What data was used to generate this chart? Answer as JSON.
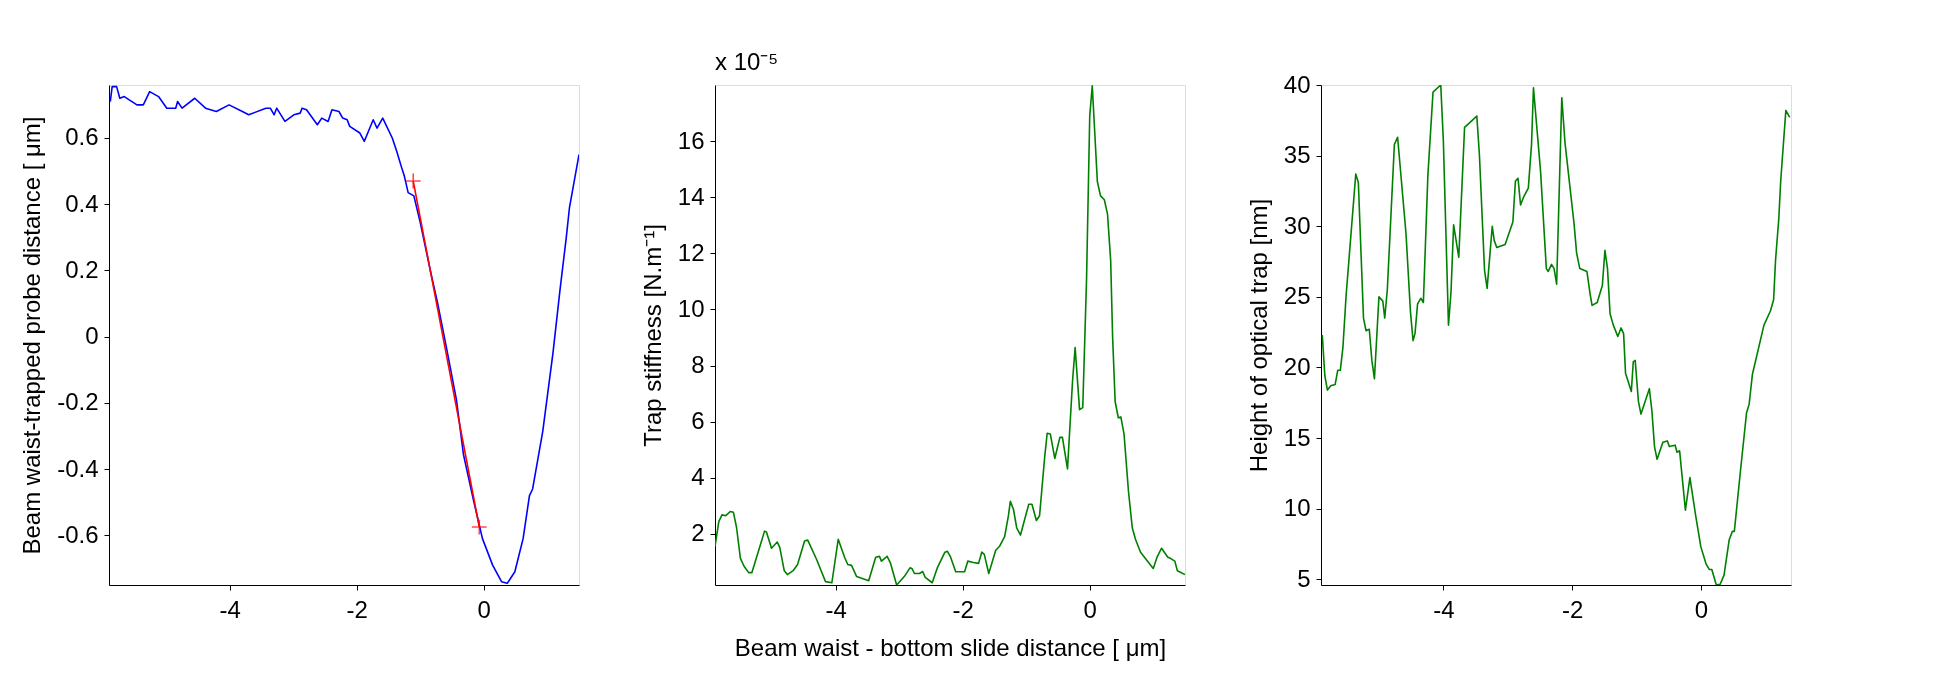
{
  "chart_data": [
    {
      "type": "line",
      "ylabel": "Beam waist-trapped probe distance [ μm]",
      "xlim": [
        -5.9,
        1.5
      ],
      "xticks": [
        -4,
        -2,
        0
      ],
      "ylim": [
        -0.75,
        0.76
      ],
      "yticks": [
        -0.6,
        -0.4,
        -0.2,
        0,
        0.2,
        0.4,
        0.6
      ],
      "grid": false,
      "line_style": "solid",
      "series": [
        {
          "color": "#0000ff",
          "marker": "none",
          "x": [
            -5.88,
            -5.85,
            -5.78,
            -5.73,
            -5.66,
            -5.46,
            -5.36,
            -5.26,
            -5.12,
            -4.99,
            -4.85,
            -4.82,
            -4.75,
            -4.55,
            -4.38,
            -4.21,
            -4.01,
            -3.8,
            -3.7,
            -3.43,
            -3.36,
            -3.3,
            -3.26,
            -3.13,
            -2.99,
            -2.89,
            -2.86,
            -2.79,
            -2.62,
            -2.55,
            -2.45,
            -2.39,
            -2.28,
            -2.22,
            -2.15,
            -2.11,
            -1.95,
            -1.88,
            -1.74,
            -1.68,
            -1.59,
            -1.44,
            -1.37,
            -1.3,
            -1.25,
            -1.19,
            -1.1,
            -1.0,
            -0.83,
            -0.73,
            -0.59,
            -0.43,
            -0.32,
            -0.16,
            -0.02,
            0.14,
            0.28,
            0.37,
            0.49,
            0.62,
            0.72,
            0.77,
            0.93,
            1.09,
            1.2,
            1.3,
            1.35,
            1.5
          ],
          "values": [
            0.71,
            0.755,
            0.755,
            0.72,
            0.725,
            0.7,
            0.7,
            0.74,
            0.725,
            0.69,
            0.69,
            0.71,
            0.69,
            0.72,
            0.69,
            0.68,
            0.7,
            0.68,
            0.67,
            0.69,
            0.69,
            0.67,
            0.69,
            0.65,
            0.67,
            0.675,
            0.69,
            0.685,
            0.64,
            0.66,
            0.65,
            0.685,
            0.68,
            0.66,
            0.655,
            0.635,
            0.615,
            0.59,
            0.655,
            0.63,
            0.66,
            0.6,
            0.56,
            0.515,
            0.485,
            0.435,
            0.425,
            0.345,
            0.19,
            0.105,
            -0.03,
            -0.19,
            -0.355,
            -0.495,
            -0.61,
            -0.69,
            -0.74,
            -0.745,
            -0.71,
            -0.61,
            -0.48,
            -0.46,
            -0.285,
            -0.05,
            0.14,
            0.3,
            0.39,
            0.55
          ]
        },
        {
          "color": "#ff0000",
          "marker": "cross",
          "x": [
            -1.11,
            -0.07
          ],
          "values": [
            0.47,
            -0.575
          ]
        }
      ]
    },
    {
      "type": "line",
      "xlabel": "Beam waist - bottom slide distance [ μm]",
      "ylabel": "Trap stiffness [N.m⁻¹]",
      "annotations": [
        "x 10⁻⁵"
      ],
      "xlim": [
        -5.9,
        1.5
      ],
      "xticks": [
        -4,
        -2,
        0
      ],
      "ylim": [
        0.18,
        18
      ],
      "yticks": [
        2,
        4,
        6,
        8,
        10,
        12,
        14,
        16
      ],
      "grid": false,
      "line_style": "solid",
      "series": [
        {
          "color": "#008000",
          "marker": "none",
          "x": [
            -5.9,
            -5.84,
            -5.79,
            -5.73,
            -5.66,
            -5.61,
            -5.56,
            -5.5,
            -5.44,
            -5.37,
            -5.32,
            -5.12,
            -5.09,
            -5.01,
            -4.92,
            -4.88,
            -4.81,
            -4.76,
            -4.67,
            -4.6,
            -4.49,
            -4.44,
            -4.3,
            -4.16,
            -4.06,
            -3.96,
            -3.86,
            -3.81,
            -3.75,
            -3.67,
            -3.48,
            -3.37,
            -3.31,
            -3.28,
            -3.19,
            -3.14,
            -3.04,
            -2.92,
            -2.83,
            -2.8,
            -2.76,
            -2.68,
            -2.63,
            -2.59,
            -2.48,
            -2.4,
            -2.28,
            -2.24,
            -2.19,
            -2.11,
            -1.97,
            -1.92,
            -1.83,
            -1.75,
            -1.7,
            -1.66,
            -1.59,
            -1.48,
            -1.42,
            -1.34,
            -1.28,
            -1.25,
            -1.2,
            -1.15,
            -1.09,
            -0.96,
            -0.91,
            -0.84,
            -0.79,
            -0.71,
            -0.67,
            -0.62,
            -0.55,
            -0.47,
            -0.43,
            -0.35,
            -0.27,
            -0.23,
            -0.16,
            -0.11,
            -0.05,
            0.0,
            0.04,
            0.12,
            0.17,
            0.23,
            0.28,
            0.33,
            0.36,
            0.4,
            0.45,
            0.49,
            0.54,
            0.61,
            0.67,
            0.72,
            0.8,
            1.0,
            1.06,
            1.13,
            1.23,
            1.27,
            1.34,
            1.38,
            1.5
          ],
          "values": [
            1.56,
            2.44,
            2.68,
            2.65,
            2.8,
            2.77,
            2.22,
            1.13,
            0.84,
            0.62,
            0.62,
            2.1,
            2.07,
            1.49,
            1.71,
            1.52,
            0.69,
            0.55,
            0.69,
            0.91,
            1.75,
            1.78,
            1.09,
            0.3,
            0.26,
            1.81,
            1.17,
            0.91,
            0.88,
            0.48,
            0.33,
            1.17,
            1.2,
            1.03,
            1.2,
            0.98,
            0.18,
            0.48,
            0.79,
            0.77,
            0.59,
            0.59,
            0.66,
            0.45,
            0.26,
            0.79,
            1.35,
            1.38,
            1.17,
            0.65,
            0.65,
            1.03,
            0.98,
            0.95,
            1.35,
            1.27,
            0.59,
            1.42,
            1.56,
            1.9,
            2.65,
            3.16,
            2.87,
            2.22,
            1.96,
            3.06,
            3.06,
            2.48,
            2.65,
            4.72,
            5.59,
            5.56,
            4.69,
            5.44,
            5.44,
            4.32,
            7.47,
            8.64,
            6.43,
            6.5,
            11.08,
            16.89,
            17.97,
            14.56,
            14.05,
            13.91,
            13.4,
            11.73,
            9.04,
            6.72,
            6.14,
            6.17,
            5.56,
            3.52,
            2.22,
            1.81,
            1.35,
            0.77,
            1.17,
            1.49,
            1.17,
            1.13,
            1.03,
            0.69,
            0.55
          ]
        }
      ]
    },
    {
      "type": "line",
      "ylabel": "Height of optical trap [nm]",
      "xlim": [
        -5.9,
        1.4
      ],
      "xticks": [
        -4,
        -2,
        0
      ],
      "ylim": [
        4.6,
        40
      ],
      "yticks": [
        5,
        10,
        15,
        20,
        25,
        30,
        35,
        40
      ],
      "grid": false,
      "line_style": "solid",
      "series": [
        {
          "color": "#008000",
          "marker": "none",
          "x": [
            -5.88,
            -5.84,
            -5.8,
            -5.75,
            -5.68,
            -5.64,
            -5.6,
            -5.56,
            -5.51,
            -5.36,
            -5.32,
            -5.24,
            -5.2,
            -5.15,
            -5.11,
            -5.07,
            -5.0,
            -4.94,
            -4.91,
            -4.87,
            -4.76,
            -4.71,
            -4.58,
            -4.51,
            -4.47,
            -4.44,
            -4.4,
            -4.35,
            -4.31,
            -4.24,
            -4.16,
            -4.04,
            -4.0,
            -3.92,
            -3.88,
            -3.84,
            -3.76,
            -3.67,
            -3.48,
            -3.44,
            -3.36,
            -3.32,
            -3.24,
            -3.21,
            -3.17,
            -3.04,
            -2.92,
            -2.88,
            -2.84,
            -2.8,
            -2.75,
            -2.68,
            -2.63,
            -2.6,
            -2.49,
            -2.4,
            -2.37,
            -2.32,
            -2.28,
            -2.24,
            -2.16,
            -2.11,
            -1.97,
            -1.93,
            -1.88,
            -1.77,
            -1.72,
            -1.69,
            -1.61,
            -1.53,
            -1.49,
            -1.45,
            -1.41,
            -1.36,
            -1.29,
            -1.24,
            -1.2,
            -1.17,
            -1.08,
            -1.05,
            -1.02,
            -0.97,
            -0.93,
            -0.8,
            -0.76,
            -0.72,
            -0.68,
            -0.59,
            -0.52,
            -0.49,
            -0.4,
            -0.37,
            -0.33,
            -0.24,
            -0.17,
            -0.08,
            0.0,
            0.08,
            0.13,
            0.17,
            0.24,
            0.3,
            0.36,
            0.44,
            0.49,
            0.52,
            0.62,
            0.71,
            0.75,
            0.8,
            0.98,
            1.08,
            1.13,
            1.16,
            1.21,
            1.24,
            1.32,
            1.38
          ],
          "values": [
            22.3,
            19.4,
            18.4,
            18.7,
            18.8,
            19.8,
            19.8,
            21.4,
            25.1,
            33.7,
            33.1,
            23.5,
            22.6,
            22.7,
            20.5,
            19.2,
            25.0,
            24.7,
            23.5,
            25.5,
            35.8,
            36.3,
            29.5,
            23.9,
            21.9,
            22.4,
            24.5,
            24.9,
            24.6,
            33.6,
            39.5,
            40.0,
            36.1,
            23.0,
            25.4,
            30.1,
            27.8,
            37.0,
            37.8,
            35.1,
            26.9,
            25.6,
            30.0,
            29.0,
            28.5,
            28.7,
            30.3,
            33.2,
            33.4,
            31.5,
            32.1,
            32.7,
            35.8,
            39.8,
            33.9,
            27.0,
            26.8,
            27.3,
            27.0,
            25.9,
            39.1,
            35.9,
            30.2,
            28.1,
            27.0,
            26.8,
            25.2,
            24.4,
            24.6,
            25.8,
            28.3,
            27.0,
            23.8,
            23.0,
            22.2,
            22.8,
            22.4,
            19.6,
            18.3,
            20.4,
            20.5,
            17.6,
            16.7,
            18.5,
            16.9,
            14.4,
            13.5,
            14.7,
            14.8,
            14.4,
            14.5,
            14.0,
            14.1,
            9.9,
            12.2,
            9.5,
            7.3,
            6.1,
            5.7,
            5.7,
            4.6,
            4.65,
            5.3,
            7.8,
            8.4,
            8.4,
            12.9,
            16.8,
            17.4,
            19.5,
            23.0,
            24.0,
            24.8,
            27.6,
            30.5,
            33.2,
            38.2,
            37.7
          ]
        }
      ]
    }
  ]
}
